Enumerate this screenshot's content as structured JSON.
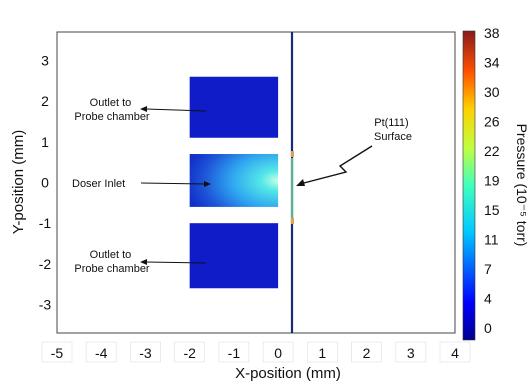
{
  "chart_data": {
    "type": "heatmap",
    "xlabel": "X-position (mm)",
    "ylabel": "Y-position (mm)",
    "xlim": [
      -5,
      4
    ],
    "ylim": [
      -3.7,
      3.7
    ],
    "x_ticks": [
      -5,
      -4,
      -3,
      -2,
      -1,
      0,
      1,
      2,
      3,
      4
    ],
    "y_ticks": [
      3,
      2,
      1,
      0,
      -1,
      -2,
      -3
    ],
    "colorbar": {
      "label": "Pressure (10⁻⁵ torr)",
      "ticks": [
        38,
        34,
        30,
        26,
        22,
        19,
        15,
        11,
        7,
        4,
        0
      ],
      "range": [
        0,
        38
      ]
    },
    "annotations": {
      "outlet_top_line1": "Outlet to",
      "outlet_top_line2": "Probe chamber",
      "doser_inlet": "Doser Inlet",
      "outlet_bottom_line1": "Outlet to",
      "outlet_bottom_line2": "Probe chamber",
      "surface_line1": "Pt(111)",
      "surface_line2": "Surface"
    },
    "regions": [
      {
        "x": [
          -2,
          0
        ],
        "y": [
          1.1,
          2.6
        ],
        "pressure": 1
      },
      {
        "x": [
          -2,
          0
        ],
        "y": [
          -0.6,
          0.7
        ],
        "pressure": 11
      },
      {
        "x": [
          -2,
          0
        ],
        "y": [
          -2.6,
          -1.0
        ],
        "pressure": 1
      }
    ],
    "colors": {
      "low": "#0f1cc8",
      "mid": "#2bd6e8",
      "surface_line": "#1a2a7a",
      "high": "#b41e1e"
    }
  }
}
